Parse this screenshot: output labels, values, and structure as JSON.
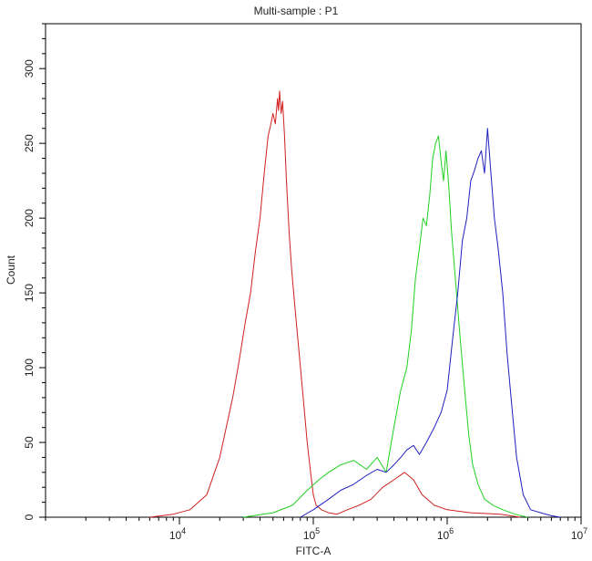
{
  "chart_data": {
    "type": "line",
    "title": "Multi-sample : P1",
    "xlabel": "FITC-A",
    "ylabel": "Count",
    "xscale": "log",
    "xlim": [
      1000,
      10000000
    ],
    "ylim": [
      0,
      330
    ],
    "x_ticks": [
      {
        "value": 10000,
        "mantissa": "10",
        "exp": "4"
      },
      {
        "value": 100000,
        "mantissa": "10",
        "exp": "5"
      },
      {
        "value": 1000000,
        "mantissa": "10",
        "exp": "6"
      },
      {
        "value": 10000000,
        "mantissa": "10",
        "exp": "7"
      }
    ],
    "y_ticks": [
      0,
      50,
      100,
      150,
      200,
      250,
      300
    ],
    "grid": false,
    "series": [
      {
        "color": "#d02020",
        "x": [
          6000,
          9000,
          12000,
          16000,
          20000,
          25000,
          28000,
          31000,
          34000,
          37000,
          40000,
          43000,
          46000,
          48000,
          50000,
          52000,
          54000,
          55000,
          56000,
          57500,
          59000,
          61000,
          63000,
          66000,
          69000,
          73000,
          78000,
          84000,
          90000,
          96000,
          100000,
          105000,
          115000,
          130000,
          150000,
          180000,
          220000,
          270000,
          330000,
          400000,
          480000,
          560000,
          650000,
          800000,
          1000000,
          1500000,
          2500000,
          3500000
        ],
        "values": [
          0,
          2,
          5,
          15,
          40,
          80,
          105,
          130,
          150,
          178,
          200,
          230,
          255,
          262,
          270,
          263,
          280,
          272,
          285,
          270,
          278,
          255,
          225,
          190,
          165,
          140,
          112,
          80,
          50,
          28,
          15,
          8,
          5,
          3,
          2,
          5,
          8,
          12,
          20,
          25,
          30,
          25,
          15,
          8,
          5,
          3,
          2,
          0
        ]
      },
      {
        "color": "#20d020",
        "x": [
          30000,
          50000,
          70000,
          90000,
          110000,
          130000,
          160000,
          200000,
          250000,
          300000,
          350000,
          400000,
          450000,
          500000,
          540000,
          580000,
          620000,
          660000,
          700000,
          740000,
          780000,
          820000,
          860000,
          900000,
          940000,
          980000,
          1030000,
          1080000,
          1150000,
          1250000,
          1350000,
          1450000,
          1550000,
          1700000,
          1900000,
          2200000,
          2600000,
          3200000,
          4000000
        ],
        "values": [
          0,
          3,
          8,
          18,
          25,
          30,
          35,
          38,
          32,
          40,
          30,
          60,
          85,
          100,
          125,
          160,
          180,
          200,
          195,
          215,
          240,
          250,
          255,
          238,
          225,
          245,
          220,
          190,
          160,
          120,
          85,
          55,
          35,
          22,
          12,
          8,
          5,
          2,
          0
        ]
      },
      {
        "color": "#2020c0",
        "x": [
          80000,
          100000,
          130000,
          160000,
          200000,
          250000,
          300000,
          350000,
          400000,
          450000,
          500000,
          560000,
          620000,
          700000,
          800000,
          900000,
          1000000,
          1100000,
          1200000,
          1300000,
          1400000,
          1500000,
          1600000,
          1700000,
          1800000,
          1900000,
          2000000,
          2100000,
          2250000,
          2400000,
          2600000,
          2800000,
          3000000,
          3300000,
          3700000,
          4200000,
          5000000,
          6000000,
          7000000
        ],
        "values": [
          0,
          5,
          12,
          18,
          22,
          28,
          32,
          30,
          35,
          40,
          45,
          48,
          42,
          50,
          60,
          70,
          85,
          120,
          150,
          185,
          200,
          225,
          232,
          240,
          245,
          230,
          260,
          235,
          200,
          180,
          150,
          110,
          80,
          40,
          15,
          5,
          3,
          1,
          0
        ]
      }
    ]
  }
}
